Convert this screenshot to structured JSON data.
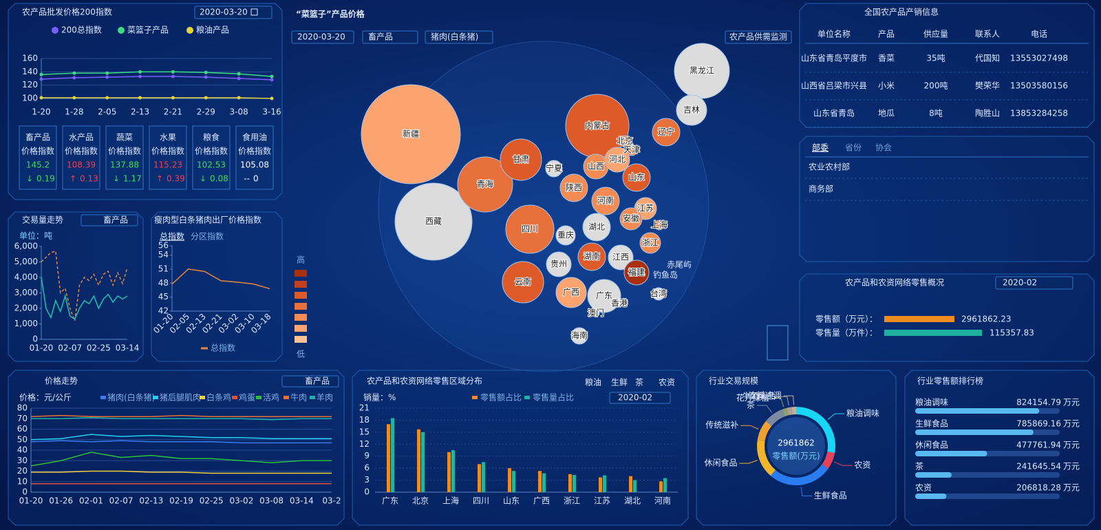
{
  "index_panel": {
    "title": "农产品批发价格200指数",
    "date": "2020-03-20",
    "cards": [
      {
        "name": "畜产品",
        "label": "价格指数",
        "value": 145.2,
        "arrow": "↓",
        "change": 0.19,
        "color": "#3ddc5a"
      },
      {
        "name": "水产品",
        "label": "价格指数",
        "value": 108.39,
        "arrow": "↑",
        "change": 0.13,
        "color": "#ff3b4a"
      },
      {
        "name": "蔬菜",
        "label": "价格指数",
        "value": 137.88,
        "arrow": "↓",
        "change": 1.17,
        "color": "#3ddc5a"
      },
      {
        "name": "水果",
        "label": "价格指数",
        "value": 115.23,
        "arrow": "↑",
        "change": 0.39,
        "color": "#ff3b4a"
      },
      {
        "name": "粮食",
        "label": "价格指数",
        "value": 102.53,
        "arrow": "↓",
        "change": 0.08,
        "color": "#3ddc5a"
      },
      {
        "name": "食用油",
        "label": "价格指数",
        "value": 105.08,
        "arrow": "--",
        "change": 0,
        "color": "#ffffff"
      }
    ]
  },
  "chart_data": [
    {
      "type": "line",
      "markers": true,
      "grid": true,
      "legend": "top",
      "categories": [
        "1-20",
        "1-28",
        "2-05",
        "2-13",
        "2-21",
        "2-29",
        "3-08",
        "3-16"
      ],
      "series": [
        {
          "name": "200总指数",
          "color": "#7a5cff",
          "values": [
            129,
            131,
            132,
            133,
            133,
            132,
            130,
            128
          ]
        },
        {
          "name": "菜篮子产品",
          "color": "#3ddc84",
          "values": [
            136,
            138,
            138,
            140,
            140,
            139,
            137,
            133
          ]
        },
        {
          "name": "粮油产品",
          "color": "#e6d43a",
          "values": [
            101,
            101,
            101,
            101,
            101,
            101,
            101,
            100
          ]
        }
      ],
      "ylim": [
        100,
        160
      ],
      "yticks": [
        100,
        120,
        140,
        160
      ]
    },
    {
      "type": "line",
      "title": "交易量走势",
      "tab": "畜产品",
      "unit_label": "单位：吨",
      "grid": false,
      "categories": [
        "01-20",
        null,
        null,
        null,
        null,
        null,
        "02-07",
        null,
        null,
        null,
        null,
        null,
        "02-25",
        null,
        null,
        null,
        null,
        null,
        "03-14"
      ],
      "series": [
        {
          "color": "#e8893a",
          "dash": true,
          "values": [
            5000,
            5300,
            5600,
            5700,
            3000,
            3300,
            2000,
            1200,
            3500,
            4000,
            3800,
            4200,
            3500,
            4200,
            4400,
            3500,
            4300,
            3600,
            4600
          ]
        },
        {
          "color": "#22c1b0",
          "values": [
            4000,
            2000,
            1400,
            2500,
            1800,
            2800,
            1500,
            1300,
            2000,
            2500,
            2300,
            2800,
            2000,
            2600,
            2900,
            2400,
            2800,
            2600,
            2800
          ]
        }
      ],
      "ylim": [
        0,
        6000
      ],
      "yticks": [
        0,
        {
          "value": 1000,
          "label": "1,000"
        },
        {
          "value": 2000,
          "label": "2,000"
        },
        {
          "value": 3000,
          "label": "3,000"
        },
        {
          "value": 4000,
          "label": "4,000"
        },
        {
          "value": 5000,
          "label": "5,000"
        },
        {
          "value": 6000,
          "label": "6,000"
        }
      ]
    },
    {
      "type": "line",
      "title": "瘦肉型白条猪肉出厂价格指数",
      "tabs": [
        "总指数",
        "分区指数"
      ],
      "grid": false,
      "legend": "bottom",
      "categories": [
        "01-20",
        "02-05",
        "02-13",
        "02-21",
        "03-02",
        "03-10",
        "03-18"
      ],
      "series": [
        {
          "name": "总指数",
          "color": "#e8893a",
          "values": [
            47.8,
            51,
            50.5,
            48.5,
            48.2,
            47.8,
            46.8
          ]
        }
      ],
      "ylim": [
        42,
        56
      ],
      "yticks": [
        42,
        45,
        48,
        51,
        54,
        56
      ]
    },
    {
      "type": "line",
      "title": "价格走势",
      "tab": "畜产品",
      "unit_label": "价格：元/公斤",
      "grid": true,
      "legend": "top",
      "categories": [
        "01-20",
        "01-26",
        "02-01",
        "02-07",
        "02-13",
        "02-19",
        "02-25",
        "03-02",
        "03-08",
        "03-14",
        "03-2"
      ],
      "series": [
        {
          "name": "猪肉(白条猪)",
          "color": "#3a7bf0",
          "values": [
            48,
            49,
            48,
            49,
            48,
            48,
            48,
            47,
            47,
            47,
            47
          ]
        },
        {
          "name": "猪后腿肌肉",
          "color": "#22d0f0",
          "values": [
            50,
            51,
            55,
            53,
            54,
            53,
            52,
            52,
            51,
            51,
            51
          ]
        },
        {
          "name": "白条鸡",
          "color": "#f0d040",
          "values": [
            19,
            19,
            20,
            20,
            19,
            19,
            18,
            18,
            18,
            18,
            18
          ]
        },
        {
          "name": "鸡蛋",
          "color": "#e0503a",
          "values": [
            8,
            8,
            8,
            8,
            8,
            8,
            8,
            8,
            8,
            8,
            8
          ]
        },
        {
          "name": "活鸡",
          "color": "#2ac03a",
          "values": [
            25,
            30,
            38,
            33,
            35,
            32,
            32,
            30,
            28,
            30,
            30
          ]
        },
        {
          "name": "牛肉",
          "color": "#ee7030",
          "values": [
            72,
            73,
            72,
            72,
            72,
            73,
            72,
            72,
            72,
            72,
            72
          ]
        },
        {
          "name": "羊肉",
          "color": "#1fb0a8",
          "values": [
            70,
            70,
            71,
            70,
            70,
            70,
            70,
            70,
            69,
            70,
            70
          ]
        }
      ],
      "ylim": [
        0,
        80
      ],
      "yticks": [
        0,
        10,
        20,
        30,
        40,
        50,
        60,
        70,
        80
      ]
    },
    {
      "type": "bar",
      "title": "农产品和农资网络零售区域分布",
      "tabs": [
        "粮油",
        "生鲜",
        "茶",
        "农资"
      ],
      "unit_label": "销量：%",
      "date": "2020-02",
      "grid": true,
      "legend": "top",
      "categories": [
        "广东",
        "北京",
        "上海",
        "四川",
        "山东",
        "广西",
        "浙江",
        "江苏",
        "湖北",
        "河南"
      ],
      "series": [
        {
          "name": "零售额占比",
          "color": "#f08c1e",
          "values": [
            17,
            15.7,
            10,
            7,
            6,
            5.3,
            4.5,
            3.7,
            4,
            2.7
          ]
        },
        {
          "name": "零售量占比",
          "color": "#1fb5a5",
          "values": [
            18.5,
            15,
            10.5,
            7.5,
            5.3,
            4.7,
            4.3,
            4.2,
            3,
            3.5
          ]
        }
      ],
      "ylim": [
        0,
        21
      ],
      "yticks": [
        0,
        3,
        6,
        9,
        12,
        15,
        18,
        21
      ]
    },
    {
      "type": "pie",
      "title": "行业交易规模",
      "center_value": 2961862,
      "center_label": "零售额(万元)",
      "categories": [
        "粮油调味",
        "农资",
        "生鲜食品",
        "休闲食品",
        "传统滋补",
        "茶",
        "花卉绿植",
        "牛奶乳品",
        "饮料冲调"
      ],
      "values": [
        824154.79,
        206818.28,
        785869.16,
        477761.94,
        250000,
        241645.54,
        60000,
        60000,
        55612
      ],
      "colors": [
        "#1ad6f5",
        "#e8425a",
        "#2a7df0",
        "#f0b52a",
        "#f0a030",
        "#7a8aa0",
        "#8aa070",
        "#b0a090",
        "#c0b0a0"
      ]
    },
    {
      "type": "hbar",
      "title": "行业零售额排行榜",
      "unit": "万元",
      "color": "#5ab8f0",
      "categories": [
        "粮油调味",
        "生鲜食品",
        "休闲食品",
        "茶",
        "农资"
      ],
      "values": [
        824154.79,
        785869.16,
        477761.94,
        241645.54,
        206818.28
      ],
      "xlim": [
        0,
        960000
      ]
    }
  ],
  "map": {
    "title": "“菜篮子”产品价格",
    "filters": [
      "2020-03-20",
      "畜产品",
      "猪肉(白条猪)"
    ],
    "button": "农产品供需监测",
    "legend_high": "高",
    "legend_low": "低",
    "legend_colors": [
      "#a8300f",
      "#c2401a",
      "#de5a28",
      "#e8703a",
      "#f48b52",
      "#fba470",
      "#fdc090"
    ],
    "provinces": [
      {
        "name": "新疆",
        "color": "#fba470"
      },
      {
        "name": "西藏",
        "color": "#dcdcdc"
      },
      {
        "name": "青海",
        "color": "#e8703a"
      },
      {
        "name": "甘肃",
        "color": "#de5a28"
      },
      {
        "name": "内蒙古",
        "color": "#de5a28"
      },
      {
        "name": "黑龙江",
        "color": "#dcdcdc"
      },
      {
        "name": "吉林",
        "color": "#dcdcdc"
      },
      {
        "name": "辽宁",
        "color": "#e8703a"
      },
      {
        "name": "四川",
        "color": "#e8703a"
      },
      {
        "name": "云南",
        "color": "#de5a28"
      },
      {
        "name": "陕西",
        "color": "#f48b52"
      },
      {
        "name": "山西",
        "color": "#f48b52"
      },
      {
        "name": "河北",
        "color": "#fba470"
      },
      {
        "name": "山东",
        "color": "#de5a28"
      },
      {
        "name": "河南",
        "color": "#f48b52"
      },
      {
        "name": "湖北",
        "color": "#dcdcdc"
      },
      {
        "name": "湖南",
        "color": "#de5a28"
      },
      {
        "name": "江西",
        "color": "#dcdcdc"
      },
      {
        "name": "广西",
        "color": "#fba470"
      },
      {
        "name": "广东",
        "color": "#dcdcdc"
      },
      {
        "name": "贵州",
        "color": "#dcdcdc"
      },
      {
        "name": "福建",
        "color": "#a8300f"
      },
      {
        "name": "江苏",
        "color": "#fba470"
      },
      {
        "name": "安徽",
        "color": "#f48b52"
      },
      {
        "name": "浙江",
        "color": "#f48b52"
      },
      {
        "name": "重庆",
        "color": "#dcdcdc"
      },
      {
        "name": "宁夏",
        "color": "#dcdcdc"
      },
      {
        "name": "海南",
        "color": "#dcdcdc"
      },
      {
        "name": "北京",
        "color": "#f48b52"
      },
      {
        "name": "天津",
        "color": "#f48b52"
      },
      {
        "name": "上海",
        "color": "#f48b52"
      },
      {
        "name": "台湾",
        "color": "#dcdcdc"
      },
      {
        "name": "香港",
        "color": "#dcdcdc"
      },
      {
        "name": "澳门",
        "color": "#dcdcdc"
      }
    ],
    "islands": [
      "赤尾屿",
      "钓鱼岛"
    ]
  },
  "info_table": {
    "title": "全国农产品产销信息",
    "columns": [
      "单位名称",
      "产品",
      "供应量",
      "联系人",
      "电话"
    ],
    "rows": [
      [
        "山东省青岛平度市",
        "香菜",
        "35吨",
        "代国知",
        "13553027498"
      ],
      [
        "山西省吕梁市兴县",
        "小米",
        "200吨",
        "樊荣华",
        "13503580156"
      ],
      [
        "山东省青岛",
        "地瓜",
        "8吨",
        "陶胜山",
        "13853284258"
      ]
    ]
  },
  "org_tabs": {
    "tabs": [
      "部委",
      "省份",
      "协会"
    ],
    "items": [
      "农业农村部",
      "商务部"
    ]
  },
  "retail_overview": {
    "title": "农产品和农资网络零售概况",
    "date": "2020-02",
    "rows": [
      {
        "label": "零售额（万元）：",
        "value": 2961862.23,
        "color": "#f08c1e"
      },
      {
        "label": "零售量（万件）：",
        "value": 115357.83,
        "color": "#1fb0a0"
      }
    ]
  }
}
